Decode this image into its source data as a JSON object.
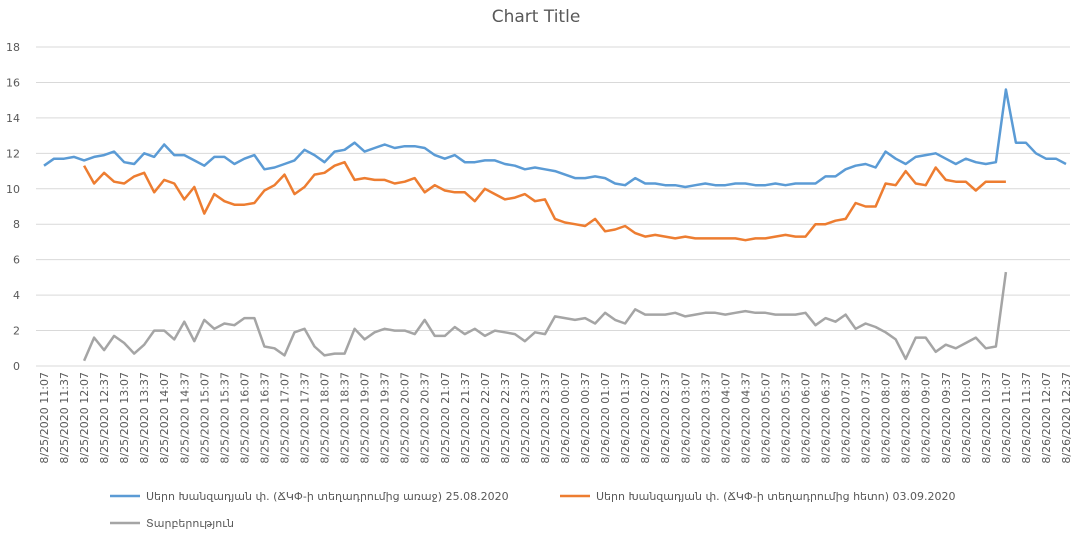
{
  "chart_data": {
    "type": "line",
    "title": "Chart Title",
    "categories": [
      "8/25/2020 11:07",
      null,
      "8/25/2020 11:37",
      null,
      "8/25/2020 12:07",
      null,
      "8/25/2020 12:37",
      null,
      "8/25/2020 13:07",
      null,
      "8/25/2020 13:37",
      null,
      "8/25/2020 14:07",
      null,
      "8/25/2020 14:37",
      null,
      "8/25/2020 15:07",
      null,
      "8/25/2020 15:37",
      null,
      "8/25/2020 16:07",
      null,
      "8/25/2020 16:37",
      null,
      "8/25/2020 17:07",
      null,
      "8/25/2020 17:37",
      null,
      "8/25/2020 18:07",
      null,
      "8/25/2020 18:37",
      null,
      "8/25/2020 19:07",
      null,
      "8/25/2020 19:37",
      null,
      "8/25/2020 20:07",
      null,
      "8/25/2020 20:37",
      null,
      "8/25/2020 21:07",
      null,
      "8/25/2020 21:37",
      null,
      "8/25/2020 22:07",
      null,
      "8/25/2020 22:37",
      null,
      "8/25/2020 23:07",
      null,
      "8/25/2020 23:37",
      null,
      "8/26/2020 00:07",
      null,
      "8/26/2020 00:37",
      null,
      "8/26/2020 01:07",
      null,
      "8/26/2020 01:37",
      null,
      "8/26/2020 02:07",
      null,
      "8/26/2020 02:37",
      null,
      "8/26/2020 03:07",
      null,
      "8/26/2020 03:37",
      null,
      "8/26/2020 04:07",
      null,
      "8/26/2020 04:37",
      null,
      "8/26/2020 05:07",
      null,
      "8/26/2020 05:37",
      null,
      "8/26/2020 06:07",
      null,
      "8/26/2020 06:37",
      null,
      "8/26/2020 07:07",
      null,
      "8/26/2020 07:37",
      null,
      "8/26/2020 08:07",
      null,
      "8/26/2020 08:37",
      null,
      "8/26/2020 09:07",
      null,
      "8/26/2020 09:37",
      null,
      "8/26/2020 10:07",
      null,
      "8/26/2020 10:37",
      null,
      "8/26/2020 11:07",
      null,
      "8/26/2020 11:37",
      null,
      "8/26/2020 12:07",
      null,
      "8/26/2020 12:37"
    ],
    "series": [
      {
        "name": "Սերո Խանզադյան փ. (ՃԿՓ-ի տեղադրումից առաջ) 25.08.2020",
        "color": "#5b9bd5",
        "values": [
          11.3,
          11.7,
          11.7,
          11.8,
          11.6,
          11.8,
          11.9,
          12.1,
          11.5,
          11.4,
          12.0,
          11.8,
          12.5,
          11.9,
          11.9,
          11.6,
          11.3,
          11.8,
          11.8,
          11.4,
          11.7,
          11.9,
          11.1,
          11.2,
          11.4,
          11.6,
          12.2,
          11.9,
          11.5,
          12.1,
          12.2,
          12.6,
          12.1,
          12.3,
          12.5,
          12.3,
          12.4,
          12.4,
          12.3,
          11.9,
          11.7,
          11.9,
          11.5,
          11.5,
          11.6,
          11.6,
          11.4,
          11.3,
          11.1,
          11.2,
          11.1,
          11.0,
          10.8,
          10.6,
          10.6,
          10.7,
          10.6,
          10.3,
          10.2,
          10.6,
          10.3,
          10.3,
          10.2,
          10.2,
          10.1,
          10.2,
          10.3,
          10.2,
          10.2,
          10.3,
          10.3,
          10.2,
          10.2,
          10.3,
          10.2,
          10.3,
          10.3,
          10.3,
          10.7,
          10.7,
          11.1,
          11.3,
          11.4,
          11.2,
          12.1,
          11.7,
          11.4,
          11.8,
          11.9,
          12.0,
          11.7,
          11.4,
          11.7,
          11.5,
          11.4,
          11.5,
          15.6,
          12.6,
          12.6,
          12.0,
          11.7,
          11.7,
          11.4
        ]
      },
      {
        "name": "Սերո Խանզադյան փ. (ՃԿՓ-ի տեղադրումից հետո) 03.09.2020",
        "color": "#ed7d31",
        "values": [
          null,
          null,
          null,
          null,
          11.3,
          10.3,
          10.9,
          10.4,
          10.3,
          10.7,
          10.9,
          9.8,
          10.5,
          10.3,
          9.4,
          10.1,
          8.6,
          9.7,
          9.3,
          9.1,
          9.1,
          9.2,
          9.9,
          10.2,
          10.8,
          9.7,
          10.1,
          10.8,
          10.9,
          11.3,
          11.5,
          10.5,
          10.6,
          10.5,
          10.5,
          10.3,
          10.4,
          10.6,
          9.8,
          10.2,
          9.9,
          9.8,
          9.8,
          9.3,
          10.0,
          9.7,
          9.4,
          9.5,
          9.7,
          9.3,
          9.4,
          8.3,
          8.1,
          8.0,
          7.9,
          8.3,
          7.6,
          7.7,
          7.9,
          7.5,
          7.3,
          7.4,
          7.3,
          7.2,
          7.3,
          7.2,
          7.2,
          7.2,
          7.2,
          7.2,
          7.1,
          7.2,
          7.2,
          7.3,
          7.4,
          7.3,
          7.3,
          8.0,
          8.0,
          8.2,
          8.3,
          9.2,
          9.0,
          9.0,
          10.3,
          10.2,
          11.0,
          10.3,
          10.2,
          11.2,
          10.5,
          10.4,
          10.4,
          9.9,
          10.4,
          10.4,
          10.4,
          null,
          null,
          null,
          null,
          null,
          null
        ]
      },
      {
        "name": "Տարբերություն",
        "color": "#a5a5a5",
        "values": [
          null,
          null,
          null,
          null,
          0.3,
          1.6,
          0.9,
          1.7,
          1.3,
          0.7,
          1.2,
          2.0,
          2.0,
          1.5,
          2.5,
          1.4,
          2.6,
          2.1,
          2.4,
          2.3,
          2.7,
          2.7,
          1.1,
          1.0,
          0.6,
          1.9,
          2.1,
          1.1,
          0.6,
          0.7,
          0.7,
          2.1,
          1.5,
          1.9,
          2.1,
          2.0,
          2.0,
          1.8,
          2.6,
          1.7,
          1.7,
          2.2,
          1.8,
          2.1,
          1.7,
          2.0,
          1.9,
          1.8,
          1.4,
          1.9,
          1.8,
          2.8,
          2.7,
          2.6,
          2.7,
          2.4,
          3.0,
          2.6,
          2.4,
          3.2,
          2.9,
          2.9,
          2.9,
          3.0,
          2.8,
          2.9,
          3.0,
          3.0,
          2.9,
          3.0,
          3.1,
          3.0,
          3.0,
          2.9,
          2.9,
          2.9,
          3.0,
          2.3,
          2.7,
          2.5,
          2.9,
          2.1,
          2.4,
          2.2,
          1.9,
          1.5,
          0.4,
          1.6,
          1.6,
          0.8,
          1.2,
          1.0,
          1.3,
          1.6,
          1.0,
          1.1,
          5.3,
          null,
          null,
          null,
          null,
          null,
          null
        ]
      }
    ],
    "ylim": [
      0,
      18
    ],
    "yticks": [
      0,
      2,
      4,
      6,
      8,
      10,
      12,
      14,
      16,
      18
    ],
    "grid": true
  }
}
